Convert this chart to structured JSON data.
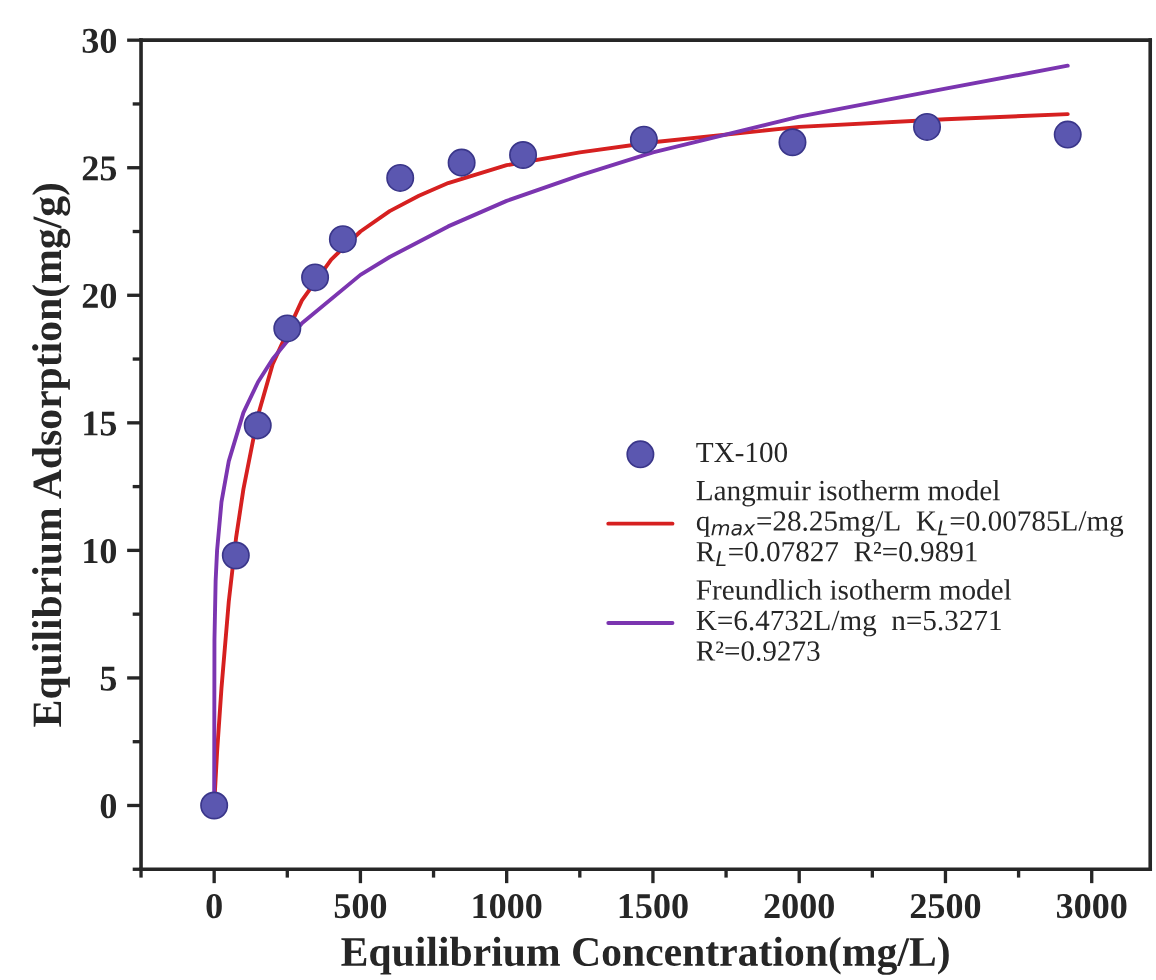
{
  "chart_data": {
    "type": "scatter",
    "xlabel": "Equilibrium Concentration(mg/L)",
    "ylabel": "Equilibrium Adsorption(mg/g)",
    "xlim": [
      -250,
      3200
    ],
    "xticks": [
      0,
      500,
      1000,
      1500,
      2000,
      2500,
      3000
    ],
    "ylim": [
      -2.5,
      30
    ],
    "yticks": [
      0,
      5,
      10,
      15,
      20,
      25,
      30
    ],
    "legend": "right",
    "series": [
      {
        "name": "TX-100",
        "marker": "circle",
        "color": "#5b57b0",
        "x": [
          0,
          74,
          149,
          250,
          345,
          440,
          636,
          846,
          1056,
          1469,
          1977,
          2437,
          2918
        ],
        "values": [
          0,
          9.8,
          14.9,
          18.7,
          20.7,
          22.2,
          24.6,
          25.2,
          25.5,
          26.1,
          26.0,
          26.6,
          26.3
        ]
      },
      {
        "name": "Langmuir isotherm model\nq$_{max}$=28.25mg/L  K$_{L}$=0.00785L/mg\nR$_{L}$=0.07827  R²=0.9891",
        "type": "line",
        "color": "#d62020",
        "x": [
          0,
          10,
          25,
          50,
          75,
          100,
          150,
          200,
          300,
          400,
          500,
          600,
          700,
          800,
          1000,
          1250,
          1500,
          2000,
          2500,
          2918
        ],
        "values": [
          0,
          2.1,
          4.6,
          8.0,
          10.5,
          12.4,
          15.3,
          17.3,
          19.8,
          21.4,
          22.5,
          23.3,
          23.9,
          24.4,
          25.1,
          25.6,
          26.0,
          26.6,
          26.9,
          27.1
        ]
      },
      {
        "name": "Freundlich isotherm model\nK=6.4732L/mg  n=5.3271\nR²=0.9273",
        "type": "line",
        "color": "#7b35b0",
        "x": [
          0,
          1,
          5,
          10,
          25,
          50,
          100,
          150,
          200,
          300,
          500,
          600,
          700,
          800,
          1000,
          1250,
          1500,
          2000,
          2500,
          2918
        ],
        "values": [
          0,
          6.5,
          8.8,
          10.0,
          11.9,
          13.5,
          15.4,
          16.6,
          17.5,
          18.9,
          20.8,
          21.5,
          22.1,
          22.7,
          23.7,
          24.7,
          25.6,
          27.0,
          28.1,
          29.0
        ]
      }
    ]
  }
}
